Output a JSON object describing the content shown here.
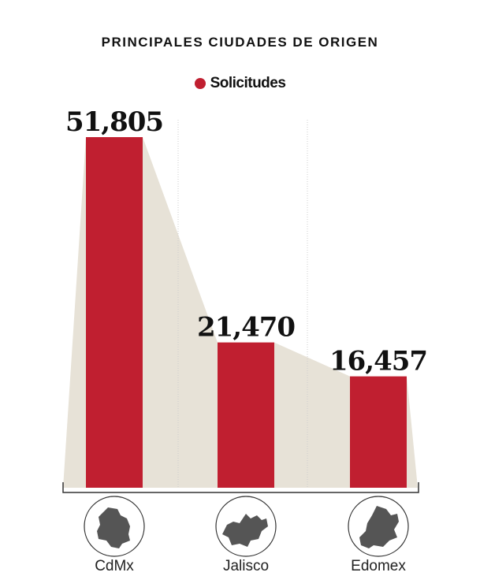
{
  "chart_data": {
    "type": "bar",
    "title": "PRINCIPALES CIUDADES DE ORIGEN",
    "categories": [
      "CdMx",
      "Jalisco",
      "Edomex"
    ],
    "series": [
      {
        "name": "Solicitudes",
        "values": [
          51805,
          21470,
          16457
        ]
      }
    ],
    "value_labels": [
      "51,805",
      "21,470",
      "16,457"
    ],
    "ylim": [
      0,
      56000
    ],
    "grid": false,
    "legend_position": "top-center",
    "icons": [
      "cdmx-map-icon",
      "jalisco-map-icon",
      "edomex-map-icon"
    ],
    "colors": {
      "bar": "#c01f30",
      "area": "#e7e2d7",
      "icon": "#555555",
      "axis": "#333333",
      "guide": "#cccccc"
    }
  }
}
